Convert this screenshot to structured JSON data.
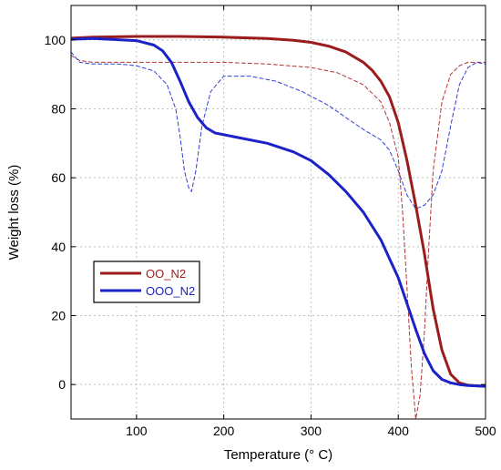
{
  "chart_data": {
    "type": "line",
    "xlabel": "Temperature (° C)",
    "ylabel": "Weight loss (%)",
    "xlim": [
      25,
      500
    ],
    "ylim": [
      -10,
      110
    ],
    "x_ticks": [
      "100",
      "200",
      "300",
      "400",
      "500"
    ],
    "y_ticks": [
      "0",
      "20",
      "40",
      "60",
      "80",
      "100"
    ],
    "x_tick_values": [
      100,
      200,
      300,
      400,
      500
    ],
    "y_tick_values": [
      0,
      20,
      40,
      60,
      80,
      100
    ],
    "grid": true,
    "legend_position": "center-left",
    "series": [
      {
        "name": "OO_N2",
        "color": "#9b1c1c",
        "style": "solid",
        "x": [
          25,
          50,
          100,
          150,
          200,
          250,
          280,
          300,
          320,
          340,
          360,
          370,
          380,
          390,
          400,
          410,
          420,
          430,
          440,
          450,
          460,
          470,
          480,
          500
        ],
        "y": [
          100.5,
          100.8,
          101,
          101,
          100.8,
          100.4,
          99.9,
          99.3,
          98.2,
          96.5,
          93.5,
          91.2,
          88,
          83.5,
          76,
          65,
          52,
          38,
          22,
          10,
          3,
          0.5,
          -0.2,
          -0.5
        ]
      },
      {
        "name": "OOO_N2",
        "color": "#1a22c8",
        "style": "solid",
        "x": [
          25,
          50,
          100,
          120,
          130,
          140,
          150,
          160,
          170,
          180,
          190,
          200,
          250,
          280,
          300,
          320,
          340,
          360,
          380,
          400,
          420,
          430,
          440,
          450,
          460,
          470,
          480,
          500
        ],
        "y": [
          100.2,
          100.4,
          99.8,
          98.5,
          96.8,
          93.5,
          88,
          82,
          77.5,
          74.5,
          73,
          72.5,
          70,
          67.5,
          65,
          61,
          56,
          50,
          42,
          31,
          16,
          9,
          4,
          1.5,
          0.5,
          0,
          -0.3,
          -0.5
        ]
      },
      {
        "color": "#b23333",
        "style": "dashed",
        "x": [
          25,
          35,
          50,
          100,
          150,
          200,
          250,
          300,
          330,
          360,
          380,
          390,
          400,
          405,
          410,
          415,
          420,
          425,
          430,
          435,
          440,
          450,
          460,
          470,
          480,
          490,
          500
        ],
        "y": [
          95.5,
          94,
          93.5,
          93.5,
          93.5,
          93.5,
          93,
          92,
          90.5,
          87,
          82,
          76,
          66,
          50,
          28,
          5,
          -10,
          -3,
          15,
          40,
          62,
          82,
          90,
          92.5,
          93.5,
          93.5,
          93.5
        ]
      },
      {
        "color": "#2f3dd6",
        "style": "dashed",
        "x": [
          25,
          35,
          50,
          80,
          100,
          120,
          135,
          145,
          150,
          155,
          160,
          163,
          168,
          175,
          185,
          200,
          230,
          260,
          290,
          320,
          340,
          360,
          380,
          390,
          400,
          410,
          420,
          430,
          440,
          450,
          460,
          470,
          480,
          490,
          500
        ],
        "y": [
          96.5,
          93.5,
          93,
          93,
          92.5,
          91,
          87,
          80,
          72,
          62,
          57,
          56,
          62,
          75,
          85,
          89.5,
          89.5,
          88,
          85,
          81,
          77.5,
          74,
          71,
          68,
          62,
          55,
          51,
          52,
          55,
          62,
          75,
          87,
          92,
          93.5,
          93
        ]
      }
    ]
  }
}
